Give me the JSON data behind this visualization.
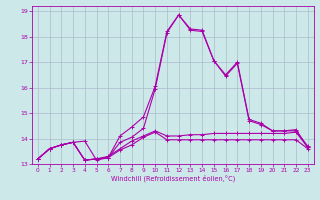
{
  "xlabel": "Windchill (Refroidissement éolien,°C)",
  "bg_color": "#cce8e8",
  "grid_color": "#aabccc",
  "line_color": "#aa00aa",
  "xlim": [
    -0.5,
    23.5
  ],
  "ylim": [
    13.0,
    19.2
  ],
  "xticks": [
    0,
    1,
    2,
    3,
    4,
    5,
    6,
    7,
    8,
    9,
    10,
    11,
    12,
    13,
    14,
    15,
    16,
    17,
    18,
    19,
    20,
    21,
    22,
    23
  ],
  "yticks": [
    13,
    14,
    15,
    16,
    17,
    18,
    19
  ],
  "series": [
    [
      13.2,
      13.6,
      13.75,
      13.85,
      13.9,
      13.15,
      13.25,
      14.1,
      14.45,
      14.85,
      16.05,
      18.2,
      18.85,
      18.3,
      18.25,
      17.05,
      16.5,
      17.0,
      14.75,
      14.6,
      14.3,
      14.3,
      14.35,
      13.65
    ],
    [
      13.2,
      13.6,
      13.75,
      13.85,
      13.15,
      13.2,
      13.25,
      13.85,
      14.05,
      14.4,
      15.95,
      18.15,
      18.85,
      18.25,
      18.2,
      17.05,
      16.45,
      16.95,
      14.7,
      14.55,
      14.3,
      14.3,
      14.3,
      13.7
    ],
    [
      13.2,
      13.6,
      13.75,
      13.85,
      13.15,
      13.2,
      13.25,
      13.55,
      13.75,
      14.05,
      14.25,
      13.95,
      13.95,
      13.95,
      13.95,
      13.95,
      13.95,
      13.95,
      13.95,
      13.95,
      13.95,
      13.95,
      13.95,
      13.6
    ],
    [
      13.2,
      13.6,
      13.75,
      13.85,
      13.15,
      13.2,
      13.3,
      13.6,
      13.9,
      14.1,
      14.3,
      14.1,
      14.1,
      14.15,
      14.15,
      14.2,
      14.2,
      14.2,
      14.2,
      14.2,
      14.2,
      14.2,
      14.25,
      13.65
    ]
  ]
}
